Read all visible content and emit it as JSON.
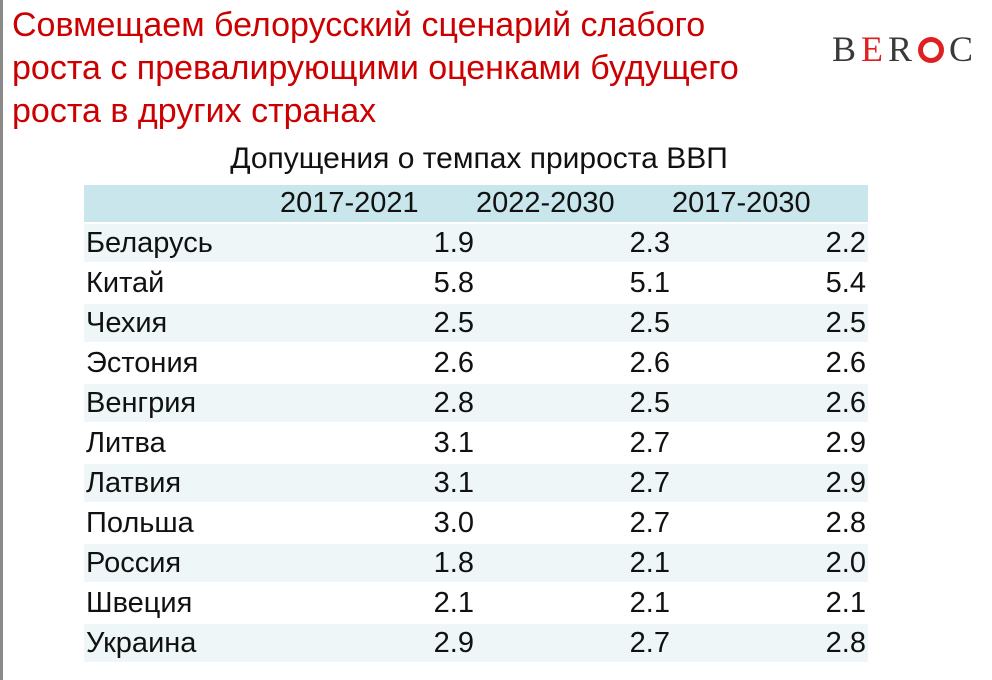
{
  "slide": {
    "title_lines": [
      "Совмещаем белорусский сценарий слабого",
      "роста с превалирующими оценками будущего",
      "роста в других странах"
    ],
    "logo": {
      "part1": "B",
      "part2": "E",
      "part3": "R",
      "part4": "C"
    },
    "table_title": "Допущения о темпах прироста ВВП"
  },
  "table": {
    "columns": [
      "",
      "2017-2021",
      "2022-2030",
      "2017-2030"
    ],
    "rows": [
      {
        "country": "Беларусь",
        "v1": "1.9",
        "v2": "2.3",
        "v3": "2.2"
      },
      {
        "country": "Китай",
        "v1": "5.8",
        "v2": "5.1",
        "v3": "5.4"
      },
      {
        "country": "Чехия",
        "v1": "2.5",
        "v2": "2.5",
        "v3": "2.5"
      },
      {
        "country": "Эстония",
        "v1": "2.6",
        "v2": "2.6",
        "v3": "2.6"
      },
      {
        "country": "Венгрия",
        "v1": "2.8",
        "v2": "2.5",
        "v3": "2.6"
      },
      {
        "country": "Литва",
        "v1": "3.1",
        "v2": "2.7",
        "v3": "2.9"
      },
      {
        "country": "Латвия",
        "v1": "3.1",
        "v2": "2.7",
        "v3": "2.9"
      },
      {
        "country": "Польша",
        "v1": "3.0",
        "v2": "2.7",
        "v3": "2.8"
      },
      {
        "country": "Россия",
        "v1": "1.8",
        "v2": "2.1",
        "v3": "2.0"
      },
      {
        "country": "Швеция",
        "v1": "2.1",
        "v2": "2.1",
        "v3": "2.1"
      },
      {
        "country": "Украина",
        "v1": "2.9",
        "v2": "2.7",
        "v3": "2.8"
      }
    ]
  },
  "colors": {
    "title": "#cc0000",
    "header_fill": "#c8e6ec",
    "row_fill": "#eef6f8",
    "logo_accent": "#e02020"
  }
}
